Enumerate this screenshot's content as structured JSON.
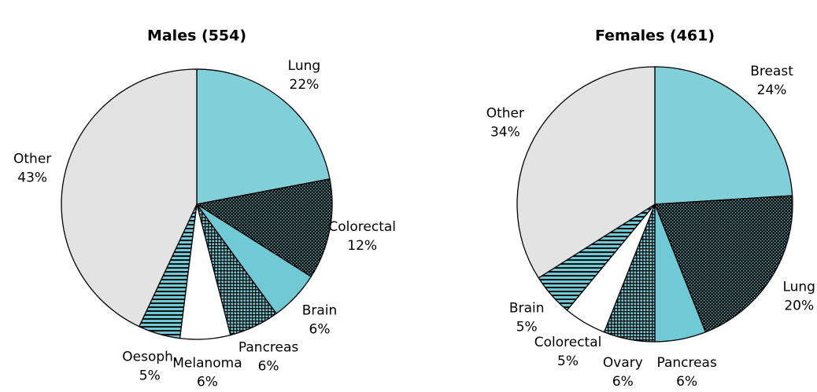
{
  "chart_data": [
    {
      "type": "pie",
      "title": "Males (554)",
      "categories": [
        "Lung",
        "Colorectal",
        "Brain",
        "Pancreas",
        "Melanoma",
        "Oesoph.",
        "Other"
      ],
      "values": [
        22,
        12,
        6,
        6,
        6,
        5,
        43
      ],
      "value_labels": [
        "22%",
        "12%",
        "6%",
        "6%",
        "6%",
        "5%",
        "43%"
      ],
      "colors": [
        "#80cfd9",
        "#6fcad6",
        "#6fcad6",
        "#6fcad6",
        "#ffffff",
        "#6fcad6",
        "#e3e3e3"
      ],
      "patterns": [
        "solid",
        "dots",
        "solid",
        "grid",
        "solid",
        "hstripes",
        "solid"
      ]
    },
    {
      "type": "pie",
      "title": "Females (461)",
      "categories": [
        "Breast",
        "Lung",
        "Pancreas",
        "Ovary",
        "Colorectal",
        "Brain",
        "Other"
      ],
      "values": [
        24,
        20,
        6,
        6,
        5,
        5,
        34
      ],
      "value_labels": [
        "24%",
        "20%",
        "6%",
        "6%",
        "5%",
        "5%",
        "34%"
      ],
      "colors": [
        "#80cfd9",
        "#6fcad6",
        "#6fcad6",
        "#6fcad6",
        "#ffffff",
        "#6fcad6",
        "#e3e3e3"
      ],
      "patterns": [
        "solid",
        "dots",
        "solid",
        "grid",
        "solid",
        "hstripes",
        "solid"
      ]
    }
  ]
}
